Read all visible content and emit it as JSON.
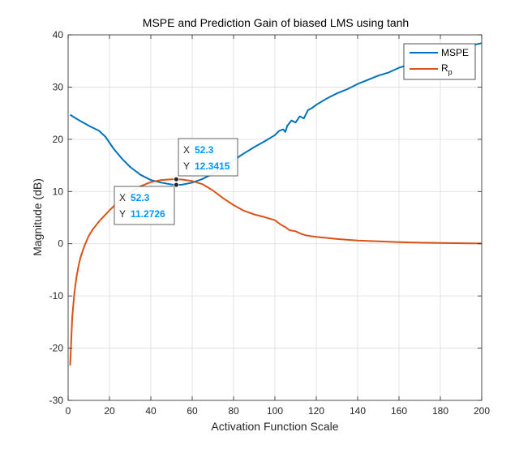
{
  "chart_data": {
    "type": "line",
    "title": "MSPE and Prediction Gain of biased LMS using tanh",
    "xlabel": "Activation Function Scale",
    "ylabel": "Magnitude (dB)",
    "xlim": [
      0,
      200
    ],
    "ylim": [
      -30,
      40
    ],
    "xticks": [
      "0",
      "20",
      "40",
      "60",
      "80",
      "100",
      "120",
      "140",
      "160",
      "180",
      "200"
    ],
    "yticks": [
      "40",
      "30",
      "20",
      "10",
      "0",
      "-10",
      "-20",
      "-30"
    ],
    "grid": true,
    "legend_position": "top-right",
    "series": [
      {
        "name": "MSPE",
        "color": "#0072bd",
        "x": [
          1,
          5,
          10,
          15,
          18,
          22,
          26,
          30,
          35,
          40,
          45,
          50,
          52.3,
          55,
          60,
          65,
          70,
          75,
          80,
          85,
          90,
          95,
          100,
          102,
          104,
          105,
          106,
          108,
          110,
          112,
          114,
          116,
          118,
          120,
          125,
          130,
          135,
          140,
          145,
          150,
          155,
          160,
          165,
          170,
          175,
          180,
          185,
          190,
          195,
          200
        ],
        "y": [
          24.7,
          23.7,
          22.6,
          21.6,
          20.5,
          18.2,
          16.3,
          14.7,
          13.2,
          12.2,
          11.7,
          11.35,
          11.2726,
          11.3,
          11.7,
          12.4,
          13.4,
          14.6,
          16.0,
          17.3,
          18.5,
          19.6,
          20.8,
          21.6,
          21.9,
          21.4,
          22.6,
          23.6,
          23.2,
          24.4,
          24.0,
          25.6,
          26.0,
          26.6,
          27.8,
          28.8,
          29.6,
          30.6,
          31.4,
          32.2,
          32.8,
          33.7,
          34.3,
          35.0,
          35.6,
          36.2,
          36.8,
          37.4,
          38.0,
          38.4
        ]
      },
      {
        "name": "R",
        "name_subscript": "p",
        "color": "#d95319",
        "x": [
          1,
          2,
          3,
          4,
          5,
          6,
          8,
          10,
          12,
          15,
          20,
          25,
          30,
          35,
          40,
          45,
          50,
          52.3,
          55,
          60,
          65,
          70,
          75,
          80,
          85,
          90,
          95,
          100,
          103,
          105,
          107,
          110,
          112,
          115,
          120,
          130,
          140,
          150,
          160,
          170,
          180,
          190,
          200
        ],
        "y": [
          -23.3,
          -14.0,
          -9.5,
          -6.5,
          -4.3,
          -2.6,
          -0.3,
          1.5,
          2.8,
          4.3,
          6.4,
          8.3,
          9.8,
          11.0,
          11.8,
          12.2,
          12.33,
          12.3415,
          12.3,
          12.0,
          11.4,
          10.2,
          8.7,
          7.4,
          6.3,
          5.6,
          5.1,
          4.5,
          3.6,
          3.2,
          2.6,
          2.4,
          2.0,
          1.6,
          1.3,
          0.9,
          0.6,
          0.45,
          0.3,
          0.2,
          0.15,
          0.1,
          0.05
        ]
      }
    ],
    "datatips": [
      {
        "x": "52.3",
        "y": "12.3415"
      },
      {
        "x": "52.3",
        "y": "11.2726"
      }
    ]
  },
  "legend": {
    "items": [
      {
        "label": "MSPE",
        "subscript": ""
      },
      {
        "label": "R",
        "subscript": "p"
      }
    ]
  },
  "datatip_labels": {
    "x": "X",
    "y": "Y"
  }
}
